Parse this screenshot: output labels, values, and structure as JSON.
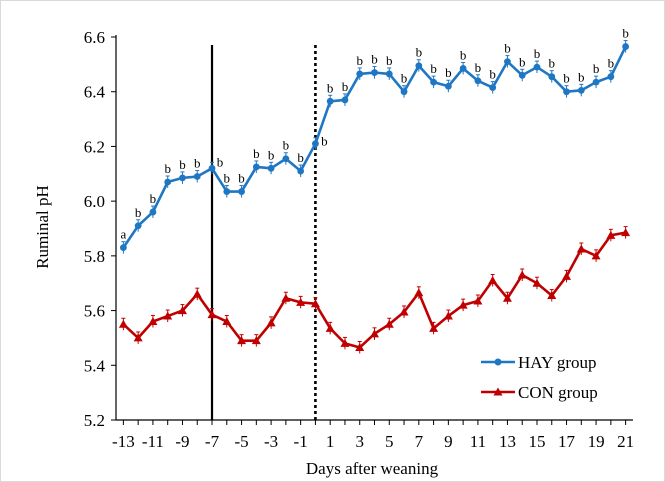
{
  "chart_data": {
    "type": "line",
    "xlabel": "Days after weaning",
    "ylabel": "Ruminal pH",
    "xlim": [
      -13,
      21
    ],
    "ylim": [
      5.2,
      6.6
    ],
    "x": [
      -13,
      -12,
      -11,
      -10,
      -9,
      -8,
      -7,
      -6,
      -5,
      -4,
      -3,
      -2,
      -1,
      0,
      1,
      2,
      3,
      4,
      5,
      6,
      7,
      8,
      9,
      10,
      11,
      12,
      13,
      14,
      15,
      16,
      17,
      18,
      19,
      20,
      21
    ],
    "x_ticks": [
      -13,
      -11,
      -9,
      -7,
      -5,
      -3,
      -1,
      1,
      3,
      5,
      7,
      9,
      11,
      13,
      15,
      17,
      19,
      21
    ],
    "x_tick_labels": [
      "-13",
      "-11",
      "-9",
      "-7",
      "-5",
      "-3",
      "-1",
      "1",
      "3",
      "5",
      "7",
      "9",
      "11",
      "13",
      "15",
      "17",
      "19",
      "21"
    ],
    "y_ticks": [
      5.2,
      5.4,
      5.6,
      5.8,
      6.0,
      6.2,
      6.4,
      6.6
    ],
    "y_tick_labels": [
      "5.2",
      "5.4",
      "5.6",
      "5.8",
      "6.0",
      "6.2",
      "6.4",
      "6.6"
    ],
    "vertical_lines": [
      {
        "x": -7,
        "style": "solid"
      },
      {
        "x": 0,
        "style": "dotted"
      }
    ],
    "legend_position": "bottom-right",
    "series": [
      {
        "name": "HAY group",
        "color": "#1f77c4",
        "marker": "circle",
        "values": [
          5.83,
          5.91,
          5.96,
          6.07,
          6.085,
          6.09,
          6.12,
          6.035,
          6.035,
          6.125,
          6.12,
          6.155,
          6.11,
          6.21,
          6.365,
          6.37,
          6.465,
          6.47,
          6.465,
          6.4,
          6.495,
          6.435,
          6.42,
          6.485,
          6.44,
          6.415,
          6.51,
          6.46,
          6.49,
          6.455,
          6.4,
          6.405,
          6.435,
          6.455,
          6.565
        ],
        "annotations": [
          "a",
          "b",
          "b",
          "b",
          "b",
          "b",
          "b",
          "b",
          "b",
          "b",
          "b",
          "b",
          "b",
          "b",
          "b",
          "b",
          "b",
          "b",
          "b",
          "b",
          "b",
          "b",
          "b",
          "b",
          "b",
          "b",
          "b",
          "b",
          "b",
          "b",
          "b",
          "b",
          "b",
          "b",
          "b"
        ]
      },
      {
        "name": "CON group",
        "color": "#c00000",
        "marker": "triangle",
        "values": [
          5.55,
          5.5,
          5.56,
          5.58,
          5.6,
          5.66,
          5.585,
          5.56,
          5.49,
          5.49,
          5.555,
          5.645,
          5.63,
          5.625,
          5.535,
          5.48,
          5.465,
          5.515,
          5.55,
          5.595,
          5.665,
          5.535,
          5.58,
          5.62,
          5.635,
          5.71,
          5.645,
          5.73,
          5.7,
          5.655,
          5.725,
          5.825,
          5.8,
          5.875,
          5.885
        ]
      }
    ]
  }
}
